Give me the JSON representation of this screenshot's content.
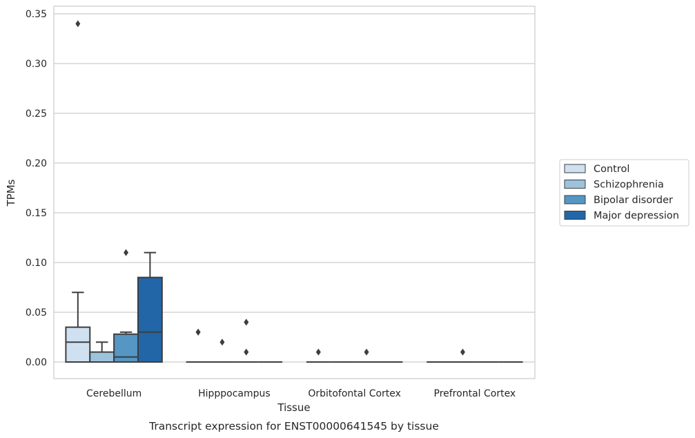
{
  "chart_data": {
    "type": "box",
    "title": "",
    "caption": "Transcript expression for ENST00000641545 by tissue",
    "xlabel": "Tissue",
    "ylabel": "TPMs",
    "ylim": [
      -0.017,
      0.357
    ],
    "yticks": [
      0.0,
      0.05,
      0.1,
      0.15,
      0.2,
      0.25,
      0.3,
      0.35
    ],
    "ytick_labels": [
      "0.00",
      "0.05",
      "0.10",
      "0.15",
      "0.20",
      "0.25",
      "0.30",
      "0.35"
    ],
    "grid": "horizontal",
    "legend_position": "right",
    "categories": [
      "Cerebellum",
      "Hipppocampus",
      "Orbitofontal Cortex",
      "Prefrontal Cortex"
    ],
    "series": [
      {
        "name": "Control",
        "color": "#cfe0f1",
        "boxes": [
          {
            "q1": 0.0,
            "median": 0.02,
            "q3": 0.035,
            "whisker_low": 0.0,
            "whisker_high": 0.07,
            "outliers": [
              0.34
            ]
          },
          {
            "q1": 0.0,
            "median": 0.0,
            "q3": 0.0,
            "whisker_low": 0.0,
            "whisker_high": 0.0,
            "outliers": [
              0.03,
              0.03
            ]
          },
          {
            "q1": 0.0,
            "median": 0.0,
            "q3": 0.0,
            "whisker_low": 0.0,
            "whisker_high": 0.0,
            "outliers": [
              0.01
            ]
          },
          {
            "q1": 0.0,
            "median": 0.0,
            "q3": 0.0,
            "whisker_low": 0.0,
            "whisker_high": 0.0,
            "outliers": []
          }
        ]
      },
      {
        "name": "Schizophrenia",
        "color": "#9dc3dc",
        "boxes": [
          {
            "q1": 0.0,
            "median": 0.0,
            "q3": 0.01,
            "whisker_low": 0.0,
            "whisker_high": 0.02,
            "outliers": []
          },
          {
            "q1": 0.0,
            "median": 0.0,
            "q3": 0.0,
            "whisker_low": 0.0,
            "whisker_high": 0.0,
            "outliers": [
              0.02
            ]
          },
          {
            "q1": 0.0,
            "median": 0.0,
            "q3": 0.0,
            "whisker_low": 0.0,
            "whisker_high": 0.0,
            "outliers": []
          },
          {
            "q1": 0.0,
            "median": 0.0,
            "q3": 0.0,
            "whisker_low": 0.0,
            "whisker_high": 0.0,
            "outliers": [
              0.01
            ]
          }
        ]
      },
      {
        "name": "Bipolar disorder",
        "color": "#5596c4",
        "boxes": [
          {
            "q1": 0.0,
            "median": 0.005,
            "q3": 0.028,
            "whisker_low": 0.0,
            "whisker_high": 0.03,
            "outliers": [
              0.11
            ]
          },
          {
            "q1": 0.0,
            "median": 0.0,
            "q3": 0.0,
            "whisker_low": 0.0,
            "whisker_high": 0.0,
            "outliers": [
              0.04,
              0.01
            ]
          },
          {
            "q1": 0.0,
            "median": 0.0,
            "q3": 0.0,
            "whisker_low": 0.0,
            "whisker_high": 0.0,
            "outliers": [
              0.01
            ]
          },
          {
            "q1": 0.0,
            "median": 0.0,
            "q3": 0.0,
            "whisker_low": 0.0,
            "whisker_high": 0.0,
            "outliers": []
          }
        ]
      },
      {
        "name": "Major depression",
        "color": "#2266a8",
        "boxes": [
          {
            "q1": 0.0,
            "median": 0.03,
            "q3": 0.085,
            "whisker_low": 0.0,
            "whisker_high": 0.11,
            "outliers": []
          },
          {
            "q1": 0.0,
            "median": 0.0,
            "q3": 0.0,
            "whisker_low": 0.0,
            "whisker_high": 0.0,
            "outliers": []
          },
          {
            "q1": 0.0,
            "median": 0.0,
            "q3": 0.0,
            "whisker_low": 0.0,
            "whisker_high": 0.0,
            "outliers": []
          },
          {
            "q1": 0.0,
            "median": 0.0,
            "q3": 0.0,
            "whisker_low": 0.0,
            "whisker_high": 0.0,
            "outliers": []
          }
        ]
      }
    ]
  }
}
